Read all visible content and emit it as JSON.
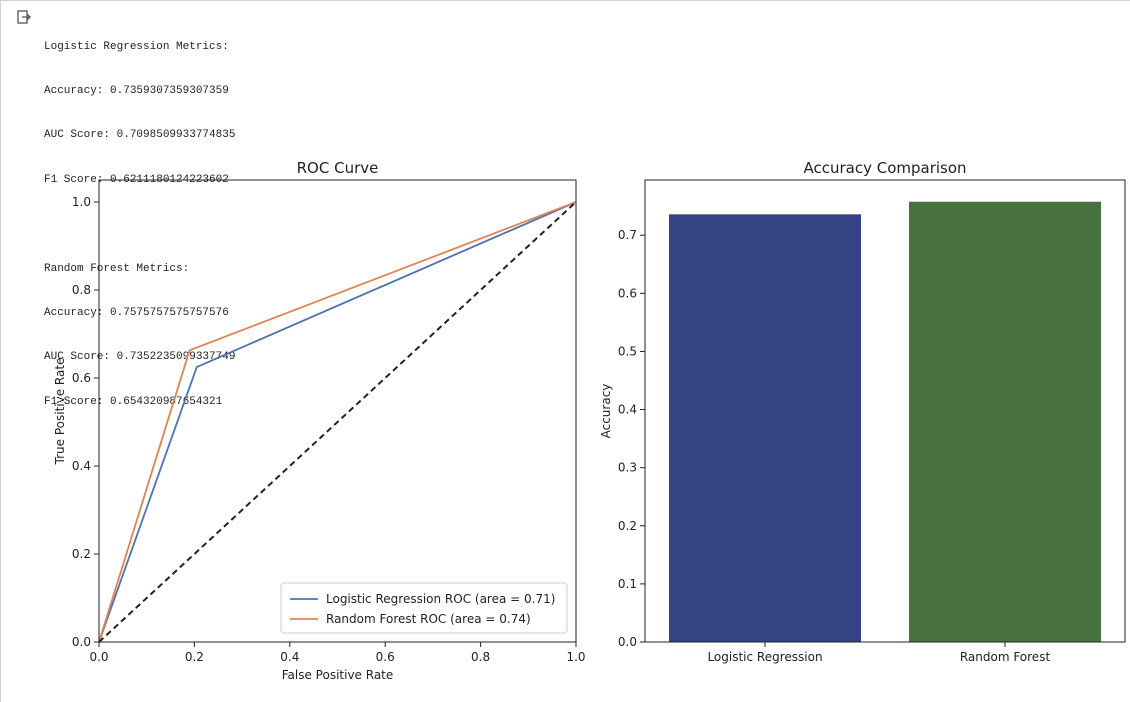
{
  "console": {
    "logistic": {
      "heading": "Logistic Regression Metrics:",
      "accuracy": "Accuracy: 0.7359307359307359",
      "auc": "AUC Score: 0.7098509933774835",
      "f1": "F1 Score: 0.6211180124223602"
    },
    "forest": {
      "heading": "Random Forest Metrics:",
      "accuracy": "Accuracy: 0.7575757575757576",
      "auc": "AUC Score: 0.7352235099337749",
      "f1": "F1 Score: 0.654320987654321"
    }
  },
  "output_icon": "output-arrow-icon",
  "chart_data": [
    {
      "type": "line",
      "title": "ROC Curve",
      "xlabel": "False Positive Rate",
      "ylabel": "True Positive Rate",
      "xlim": [
        0,
        1
      ],
      "ylim": [
        0,
        1.05
      ],
      "xticks": [
        0.0,
        0.2,
        0.4,
        0.6,
        0.8,
        1.0
      ],
      "yticks": [
        0.0,
        0.2,
        0.4,
        0.6,
        0.8,
        1.0
      ],
      "legend_position": "lower-right",
      "series": [
        {
          "name": "Logistic Regression ROC (area = 0.71)",
          "color": "#4c72b0",
          "x": [
            0,
            0.205,
            1
          ],
          "y": [
            0,
            0.625,
            1
          ]
        },
        {
          "name": "Random Forest ROC (area = 0.74)",
          "color": "#dd8452",
          "x": [
            0,
            0.19,
            1
          ],
          "y": [
            0,
            0.663,
            1
          ]
        },
        {
          "color": "#222222",
          "dashed": true,
          "x": [
            0,
            1
          ],
          "y": [
            0,
            1
          ]
        }
      ]
    },
    {
      "type": "bar",
      "title": "Accuracy Comparison",
      "ylabel": "Accuracy",
      "categories": [
        "Logistic Regression",
        "Random Forest"
      ],
      "values": [
        0.7359307359307359,
        0.7575757575757576
      ],
      "colors": [
        "#354284",
        "#487140"
      ],
      "ylim": [
        0,
        0.795
      ],
      "yticks": [
        0.0,
        0.1,
        0.2,
        0.3,
        0.4,
        0.5,
        0.6,
        0.7
      ]
    }
  ]
}
